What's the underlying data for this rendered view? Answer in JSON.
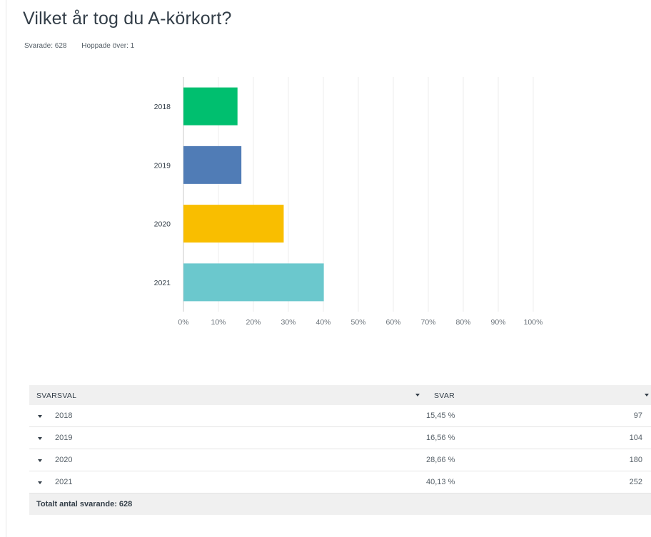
{
  "question": {
    "title": "Vilket år tog du A-körkort?",
    "answered": "Svarade: 628",
    "skipped": "Hoppade över: 1"
  },
  "chart_data": {
    "type": "bar",
    "orientation": "horizontal",
    "categories": [
      "2018",
      "2019",
      "2020",
      "2021"
    ],
    "values": [
      15.45,
      16.56,
      28.66,
      40.13
    ],
    "colors": [
      "#00bf6f",
      "#507cb6",
      "#f9be00",
      "#6bc8cd"
    ],
    "xlim": [
      0,
      100
    ],
    "x_ticks": [
      "0%",
      "10%",
      "20%",
      "30%",
      "40%",
      "50%",
      "60%",
      "70%",
      "80%",
      "90%",
      "100%"
    ],
    "grid": true
  },
  "table": {
    "col_choice": "SVARSVAL",
    "col_answers": "SVAR",
    "rows": [
      {
        "label": "2018",
        "percent": "15,45 %",
        "count": "97"
      },
      {
        "label": "2019",
        "percent": "16,56 %",
        "count": "104"
      },
      {
        "label": "2020",
        "percent": "28,66 %",
        "count": "180"
      },
      {
        "label": "2021",
        "percent": "40,13 %",
        "count": "252"
      }
    ],
    "total": "Totalt antal svarande: 628"
  }
}
